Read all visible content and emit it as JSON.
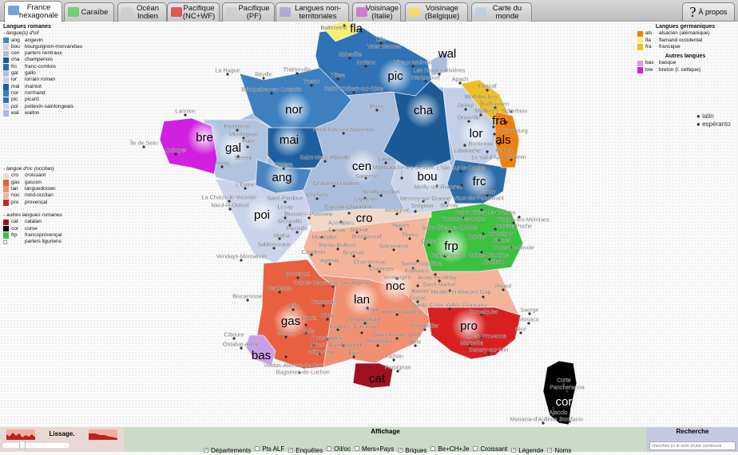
{
  "tabs": [
    {
      "label": "France hexagonale",
      "active": true
    },
    {
      "label": "Caraïbe"
    },
    {
      "label": "Océan Indien"
    },
    {
      "label": "Pacifique (NC+WF)"
    },
    {
      "label": "Pacifique (PF)"
    },
    {
      "label": "Langues non-territoriales"
    },
    {
      "label": "Voisinage (Italie)"
    },
    {
      "label": "Voisinage (Belgique)"
    },
    {
      "label": "Carte du monde"
    }
  ],
  "about_label": "À propos",
  "legend_left": {
    "title": "Langues romanes",
    "oil_title": "- langue(s) d'oïl",
    "oil": [
      {
        "code": "ang",
        "name": "angevin",
        "color": "#4a84c0"
      },
      {
        "code": "bou",
        "name": "bourguignon-morvandiau",
        "color": "#c8d4e8"
      },
      {
        "code": "cen",
        "name": "parlers centraux",
        "color": "#a9bedc"
      },
      {
        "code": "cha",
        "name": "champenois",
        "color": "#1b5a96"
      },
      {
        "code": "frc",
        "name": "franc-comtois",
        "color": "#2e6ca8"
      },
      {
        "code": "gal",
        "name": "gallo",
        "color": "#b0c4e0"
      },
      {
        "code": "lor",
        "name": "lorrain roman",
        "color": "#c2cfe6"
      },
      {
        "code": "mai",
        "name": "mainiot",
        "color": "#1e5f9f"
      },
      {
        "code": "nor",
        "name": "normand",
        "color": "#3e7fc0"
      },
      {
        "code": "pic",
        "name": "picard",
        "color": "#2f72b6"
      },
      {
        "code": "poi",
        "name": "poitevin-saintongeais",
        "color": "#cad2ec"
      },
      {
        "code": "wal",
        "name": "wallon",
        "color": "#a8bede"
      }
    ],
    "oc_title": "- langue d'oc (occitan)",
    "oc": [
      {
        "code": "cro",
        "name": "croissant",
        "color": "#f0d8c8"
      },
      {
        "code": "gas",
        "name": "gascon",
        "color": "#e86040"
      },
      {
        "code": "lan",
        "name": "languedocien",
        "color": "#f09070"
      },
      {
        "code": "noc",
        "name": "nord-occitan",
        "color": "#f4b49a"
      },
      {
        "code": "pro",
        "name": "provençal",
        "color": "#d82020"
      }
    ],
    "other_title": "- autres langues romanes",
    "other": [
      {
        "code": "cat",
        "name": "catalan",
        "color": "#a01020"
      },
      {
        "code": "cor",
        "name": "corse",
        "color": "#000000"
      },
      {
        "code": "frp",
        "name": "francoprovençal",
        "color": "#3cc040"
      },
      {
        "code": "",
        "name": "parlers liguriens",
        "color": "#ffffff"
      }
    ]
  },
  "legend_right": {
    "germ_title": "Langues germaniques",
    "germ": [
      {
        "code": "als",
        "name": "alsacien (alémanique)",
        "color": "#f08010"
      },
      {
        "code": "fla",
        "name": "flamand occidental",
        "color": "#f8f070"
      },
      {
        "code": "fra",
        "name": "francique",
        "color": "#f0c020"
      }
    ],
    "other_title": "Autres langues",
    "other": [
      {
        "code": "bas",
        "name": "basque",
        "color": "#c9a0e8"
      },
      {
        "code": "bre",
        "name": "breton (l. celtique)",
        "color": "#d020e0"
      }
    ],
    "nonterr": [
      "latin",
      "espéranto"
    ]
  },
  "languages": [
    "fla",
    "pic",
    "wal",
    "cha",
    "nor",
    "bre",
    "gal",
    "mai",
    "ang",
    "cen",
    "lor",
    "fra",
    "als",
    "bou",
    "frc",
    "poi",
    "cro",
    "frp",
    "noc",
    "lan",
    "gas",
    "pro",
    "bas",
    "cat",
    "cor"
  ],
  "cities": [
    "Bollezeele",
    "Lille",
    "Valenciennes",
    "Abbeville",
    "Amiens",
    "Vireux-Molhain",
    "Les Hautes-Rivières",
    "Haraucourt",
    "La Hague",
    "Réville",
    "Thiétreville",
    "Tôtes",
    "Yvetot",
    "Saint-Philbert-sur-Risle",
    "Bricquebec-en-Cotentin",
    "Paris",
    "Delme",
    "Drouville",
    "Lannion",
    "Pommeret",
    "Merdrignac",
    "Pacé",
    "Sérent",
    "Auray",
    "Quimper",
    "Île de Sein",
    "Neufchâtel-en-Saosnois",
    "Saint-Mars-d'Outillé",
    "Angers",
    "Lavau",
    "Sancerre",
    "Montsauche-les-Settons",
    "Meilly-sur-Rouvres",
    "L'Isle-sur-le-Doubs",
    "L'Epine",
    "Ceaux-en-Loudun",
    "Neuilly-en-Dun",
    "Lignières",
    "Messey-sur-Grosne",
    "Sornay",
    "La Chaize-le-Vicomte",
    "Nieul-le-Dolent",
    "Saint-Pardoux",
    "Cherves",
    "Saint-Trivier-de-Courtes",
    "Thonon-les-Bains",
    "Thollon-les-Mémises",
    "Habère-Poche",
    "Saint-Étienne-du-Bois",
    "Arbusigny",
    "Rumilly",
    "Flumet",
    "Tours-en-Savoie",
    "Coise",
    "Saint-Étienne",
    "Sainte-Blandine",
    "Arvillard",
    "Bussière-Poitevine",
    "Lezay",
    "Genouillé",
    "Azérables",
    "Éguzon-Chantôme",
    "Archignat",
    "Sivignon",
    "Pleuville",
    "Fursac",
    "Sannat",
    "Naves",
    "Montrollet",
    "Bourganeuf",
    "Thiers",
    "Matha",
    "Sablonceaux",
    "Pierre-Buffière",
    "Soleymieux",
    "Condéon",
    "Beyssac",
    "Vendays-Montalivet",
    "Agonac",
    "Charmensac",
    "Clavières",
    "Sainte-Sigolène",
    "Pailharès",
    "Arsac-en-Velay",
    "Venteuges",
    "Saint-Martial",
    "Bordeaux",
    "Sainte-Geneviève-sur-Argence",
    "Rauret",
    "Mirabel-et-Blacons",
    "Risoul",
    "Gap",
    "Verdelais",
    "Biscarrosse",
    "Grizac",
    "Caussade",
    "Najac",
    "Sainte-Croix-Vallée-Française",
    "Domessargues",
    "Saorge",
    "Forcalquier",
    "Bélis",
    "Monaco",
    "Gimat",
    "Goutz",
    "Montgaillard",
    "Toulouse",
    "Caraman",
    "Montpellier",
    "Nice",
    "Ciboure",
    "Momas",
    "Pavie",
    "Ponsampère",
    "Saint-Amans-Soult",
    "Aix-en-Provence",
    "Ostabat-Asme",
    "Lilhac",
    "Caudebronde",
    "Montblanc",
    "Sète",
    "Marseille",
    "Viodos-Abense-de-Bas",
    "Artiguemy",
    "Foix",
    "Sanary-sur-Mer",
    "Tuchan",
    "Perpignan",
    "Bagnères-de-Luchon",
    "Apach",
    "Filstroff",
    "Kalhausen",
    "Schirrhein",
    "Wolfskirchen",
    "Strasbourg",
    "Mollkirch",
    "Breitenau",
    "Colmar",
    "Labaroche",
    "Le Val-d'Ajol",
    "Rixheim",
    "Lemuy",
    "Vaux-lès-Passavant",
    "Corte",
    "Pancheraccia",
    "Ajaccio",
    "Bonifacio",
    "Monacia-d'Aullène"
  ],
  "bottom": {
    "lissage_title": "Lissage.",
    "lissage_value": 0.3,
    "affichage_title": "Affichage",
    "options": [
      {
        "label": "Départements",
        "checked": true
      },
      {
        "label": "Pts ALF",
        "checked": false
      },
      {
        "label": "Enquêtes",
        "checked": true
      },
      {
        "label": "Oïl/oc",
        "checked": false
      },
      {
        "label": "Mers+Pays",
        "checked": false
      },
      {
        "label": "Briques",
        "checked": true
      },
      {
        "label": "Be+CH+Je",
        "checked": false
      },
      {
        "label": "Croissant",
        "checked": false
      },
      {
        "label": "Légende",
        "checked": true
      },
      {
        "label": "Noms",
        "checked": true
      }
    ],
    "recherche_title": "Recherche",
    "search_placeholder": "cherchez ici le nom d'une commune"
  }
}
